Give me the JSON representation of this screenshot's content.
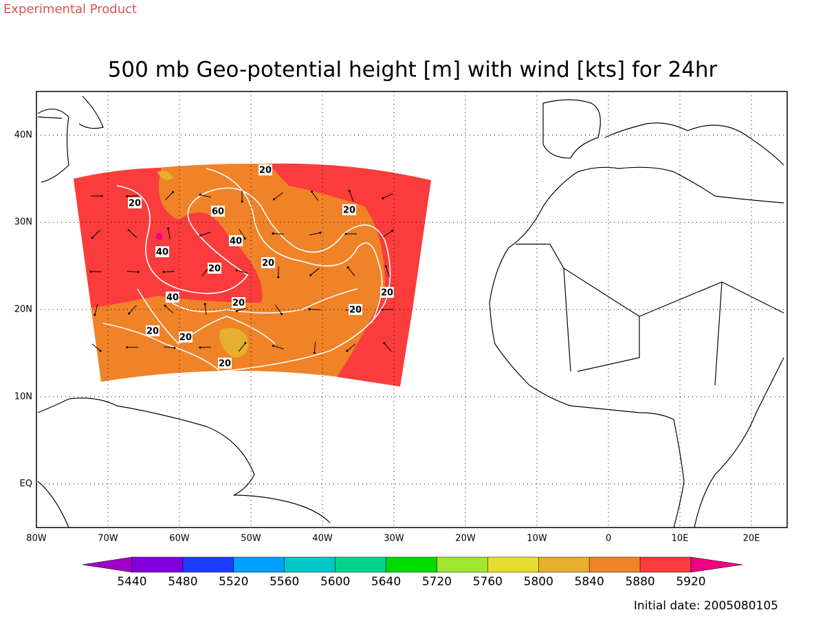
{
  "header": {
    "product": "Experimental Product"
  },
  "title": "500 mb Geo-potential height [m] with wind [kts] for 24hr",
  "map": {
    "lat_ticks": [
      {
        "value": 40,
        "label": "40N"
      },
      {
        "value": 30,
        "label": "30N"
      },
      {
        "value": 20,
        "label": "20N"
      },
      {
        "value": 10,
        "label": "10N"
      },
      {
        "value": 0,
        "label": "EQ"
      }
    ],
    "lon_ticks": [
      {
        "value": -80,
        "label": "80W"
      },
      {
        "value": -70,
        "label": "70W"
      },
      {
        "value": -60,
        "label": "60W"
      },
      {
        "value": -50,
        "label": "50W"
      },
      {
        "value": -40,
        "label": "40W"
      },
      {
        "value": -30,
        "label": "30W"
      },
      {
        "value": -20,
        "label": "20W"
      },
      {
        "value": -10,
        "label": "10W"
      },
      {
        "value": 0,
        "label": "0"
      },
      {
        "value": 10,
        "label": "10E"
      },
      {
        "value": 20,
        "label": "20E"
      }
    ],
    "lat_range": [
      -5,
      45
    ],
    "lon_range": [
      -80,
      25
    ],
    "wind_contour_labels": [
      "20",
      "20",
      "20",
      "60",
      "40",
      "40",
      "20",
      "20",
      "20",
      "40",
      "20",
      "20",
      "20",
      "20",
      "20"
    ]
  },
  "colorbar": {
    "levels": [
      5440,
      5480,
      5520,
      5560,
      5600,
      5640,
      5720,
      5760,
      5800,
      5840,
      5880,
      5920
    ],
    "colors": [
      "#a000c8",
      "#8200dc",
      "#1e3cff",
      "#00a0ff",
      "#00c8c8",
      "#00d28c",
      "#00dc00",
      "#a0e632",
      "#e6dc32",
      "#e6af2d",
      "#f08228",
      "#fa3c3c",
      "#f00082"
    ]
  },
  "footer": {
    "initial_date": "Initial date: 2005080105"
  }
}
